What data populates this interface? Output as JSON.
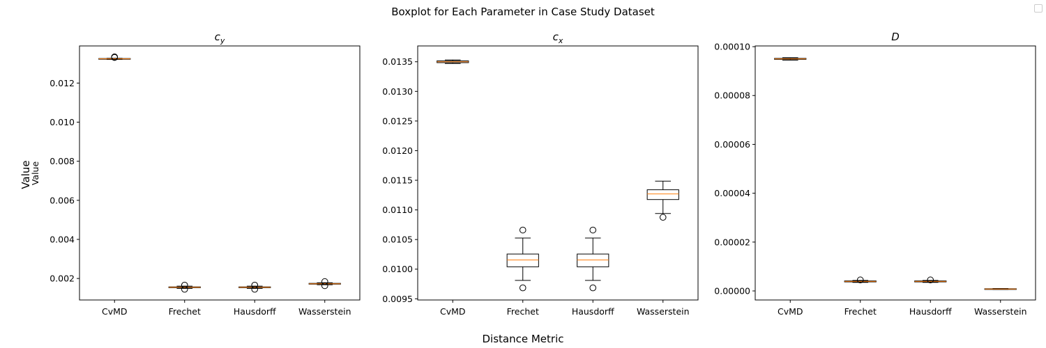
{
  "suptitle": "Boxplot for Each Parameter in Case Study Dataset",
  "supxlabel": "Distance Metric",
  "supylabel": "Value",
  "colors": {
    "box": "#000000",
    "median": "#ff7f0e",
    "flier": "#000000"
  },
  "chart_data": [
    {
      "type": "box",
      "title_base": "c",
      "title_sub": "y",
      "ylabel": "Value",
      "categories": [
        "CvMD",
        "Frechet",
        "Hausdorff",
        "Wasserstein"
      ],
      "ylim": [
        0.0009,
        0.0139
      ],
      "yticks": [
        0.002,
        0.004,
        0.006,
        0.008,
        0.01,
        0.012
      ],
      "ytick_labels": [
        "0.002",
        "0.004",
        "0.006",
        "0.008",
        "0.010",
        "0.012"
      ],
      "boxes": [
        {
          "whislo": 0.01321,
          "q1": 0.013225,
          "med": 0.01324,
          "q3": 0.013255,
          "whishi": 0.01327,
          "fliers": [
            0.01334,
            0.01331
          ]
        },
        {
          "whislo": 0.00149,
          "q1": 0.00153,
          "med": 0.00155,
          "q3": 0.00157,
          "whishi": 0.00161,
          "fliers": [
            0.00145,
            0.00166
          ]
        },
        {
          "whislo": 0.00149,
          "q1": 0.00153,
          "med": 0.00155,
          "q3": 0.00157,
          "whishi": 0.00161,
          "fliers": [
            0.00145,
            0.00166
          ]
        },
        {
          "whislo": 0.00168,
          "q1": 0.00171,
          "med": 0.00173,
          "q3": 0.00175,
          "whishi": 0.00178,
          "fliers": [
            0.00163,
            0.00184
          ]
        }
      ]
    },
    {
      "type": "box",
      "title_base": "c",
      "title_sub": "x",
      "ylabel": "",
      "categories": [
        "CvMD",
        "Frechet",
        "Hausdorff",
        "Wasserstein"
      ],
      "ylim": [
        0.00948,
        0.013767
      ],
      "yticks": [
        0.0095,
        0.01,
        0.0105,
        0.011,
        0.0115,
        0.012,
        0.0125,
        0.013,
        0.0135
      ],
      "ytick_labels": [
        "0.0095",
        "0.0100",
        "0.0105",
        "0.0110",
        "0.0115",
        "0.0120",
        "0.0125",
        "0.0130",
        "0.0135"
      ],
      "boxes": [
        {
          "whislo": 0.01347,
          "q1": 0.013485,
          "med": 0.0135,
          "q3": 0.013515,
          "whishi": 0.01353,
          "fliers": []
        },
        {
          "whislo": 0.00981,
          "q1": 0.01004,
          "med": 0.010155,
          "q3": 0.010255,
          "whishi": 0.010525,
          "fliers": [
            0.009685,
            0.01066
          ]
        },
        {
          "whislo": 0.00981,
          "q1": 0.01004,
          "med": 0.010155,
          "q3": 0.010255,
          "whishi": 0.010525,
          "fliers": [
            0.009685,
            0.01066
          ]
        },
        {
          "whislo": 0.01094,
          "q1": 0.011175,
          "med": 0.01127,
          "q3": 0.01134,
          "whishi": 0.011485,
          "fliers": [
            0.010875
          ]
        }
      ]
    },
    {
      "type": "box",
      "title_base": "D",
      "title_sub": "",
      "ylabel": "",
      "categories": [
        "CvMD",
        "Frechet",
        "Hausdorff",
        "Wasserstein"
      ],
      "ylim": [
        -3.7e-06,
        0.0001003
      ],
      "yticks": [
        0.0,
        2e-05,
        4e-05,
        6e-05,
        8e-05,
        0.0001
      ],
      "ytick_labels": [
        "0.00000",
        "0.00002",
        "0.00004",
        "0.00006",
        "0.00008",
        "0.00010"
      ],
      "boxes": [
        {
          "whislo": 9.45e-05,
          "q1": 9.48e-05,
          "med": 9.5e-05,
          "q3": 9.52e-05,
          "whishi": 9.55e-05,
          "fliers": []
        },
        {
          "whislo": 3.5e-06,
          "q1": 3.7e-06,
          "med": 3.9e-06,
          "q3": 4.1e-06,
          "whishi": 4.3e-06,
          "fliers": [
            4.5e-06
          ]
        },
        {
          "whislo": 3.5e-06,
          "q1": 3.7e-06,
          "med": 3.9e-06,
          "q3": 4.1e-06,
          "whishi": 4.3e-06,
          "fliers": [
            4.5e-06
          ]
        },
        {
          "whislo": 6e-07,
          "q1": 7e-07,
          "med": 8e-07,
          "q3": 9e-07,
          "whishi": 1e-06,
          "fliers": []
        }
      ]
    }
  ]
}
